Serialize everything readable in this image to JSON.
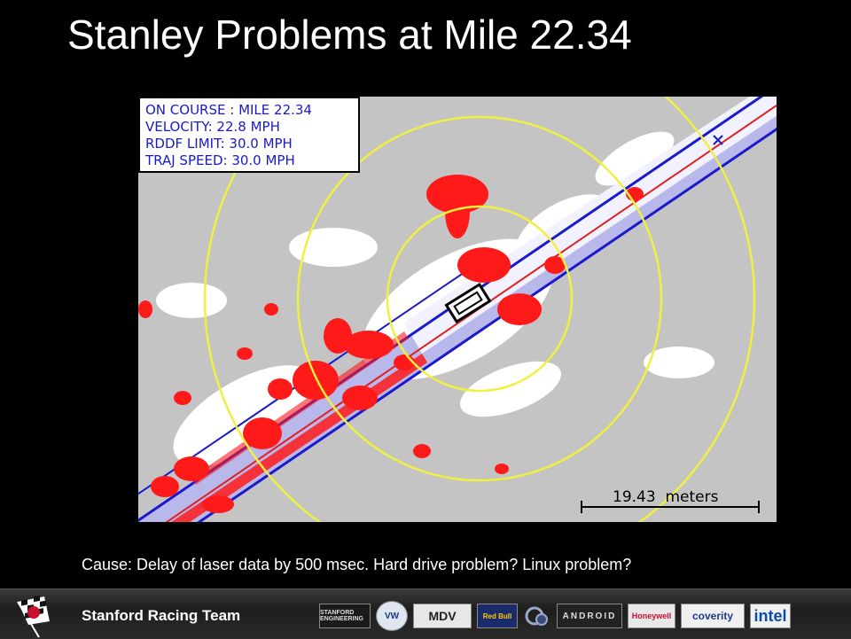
{
  "slide": {
    "title": "Stanley Problems at Mile 22.34",
    "caption": "Cause: Delay of laser data by 500 msec. Hard drive problem? Linux problem?"
  },
  "status_box": {
    "line1": "ON COURSE : MILE 22.34",
    "line2": "VELOCITY: 22.8 MPH",
    "line3": "RDDF LIMIT: 30.0 MPH",
    "line4": "TRAJ SPEED: 30.0 MPH"
  },
  "scale_bar": {
    "label": "19.43  meters"
  },
  "footer": {
    "team": "Stanford Racing Team",
    "sponsors": {
      "stanford": "STANFORD ENGINEERING",
      "vw": "VW",
      "mdv": "MDV",
      "redbull": "Red Bull",
      "android": "ANDROID",
      "honeywell": "Honeywell",
      "coverity": "coverity",
      "intel": "intel"
    }
  },
  "colors": {
    "background": "#000000",
    "map_ground": "#c4c4c4",
    "obstacle": "#ff1a1a",
    "corridor_fill": "#b8b8ea",
    "corridor_line": "#1a1acc",
    "center_line": "#e02020",
    "range_ring": "#f0f040"
  }
}
